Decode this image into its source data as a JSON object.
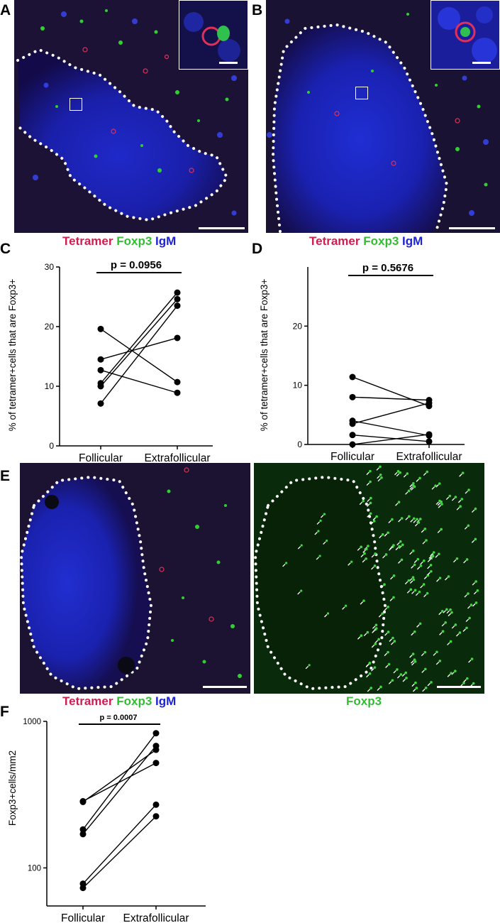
{
  "panels": {
    "A": "A",
    "B": "B",
    "C": "C",
    "D": "D",
    "E": "E",
    "F": "F"
  },
  "legend": {
    "tetramer": "Tetramer",
    "foxp3": "Foxp3",
    "igm": "IgM"
  },
  "colors": {
    "tetramer": "#cc1f4f",
    "foxp3": "#2fc02f",
    "igm": "#1e22d8",
    "background_tissue": "#1a0e2a"
  },
  "chart_data": [
    {
      "panel": "C",
      "type": "line",
      "ylabel_html": "% of tetramer⁺cells that are Foxp3⁺",
      "ylabel": "% of tetramer+cells that are Foxp3+",
      "categories": [
        "Follicular",
        "Extrafollicular"
      ],
      "ylim": [
        0,
        30
      ],
      "yticks": [
        0,
        10,
        20,
        30
      ],
      "pvalue": "p = 0.0956",
      "pairs": [
        [
          19.6,
          10.7
        ],
        [
          14.5,
          18.1
        ],
        [
          12.7,
          8.9
        ],
        [
          10.5,
          25.7
        ],
        [
          10.0,
          24.6
        ],
        [
          7.1,
          23.5
        ]
      ]
    },
    {
      "panel": "D",
      "type": "line",
      "ylabel": "% of tetramer+cells that are Foxp3+",
      "categories": [
        "Follicular",
        "Extrafollicular"
      ],
      "ylim": [
        0,
        30
      ],
      "yticks": [
        0,
        10,
        20
      ],
      "pvalue": "p = 0.5676",
      "pairs": [
        [
          11.4,
          6.5
        ],
        [
          8.0,
          7.5
        ],
        [
          4.0,
          1.5
        ],
        [
          3.5,
          7.0
        ],
        [
          1.6,
          0.5
        ],
        [
          0.0,
          1.7
        ]
      ]
    },
    {
      "panel": "F",
      "type": "line",
      "ylabel": "Foxp3+cells/mm2",
      "categories": [
        "Follicular",
        "Extrafollicular"
      ],
      "yscale": "log",
      "ylim": [
        55,
        1000
      ],
      "yticks": [
        100,
        1000
      ],
      "pvalue": "p = 0.0007",
      "pairs": [
        [
          285,
          520
        ],
        [
          282,
          640
        ],
        [
          183,
          830
        ],
        [
          170,
          680
        ],
        [
          78,
          270
        ],
        [
          73,
          225
        ]
      ]
    }
  ],
  "panelE": {
    "right_label": "Foxp3"
  }
}
